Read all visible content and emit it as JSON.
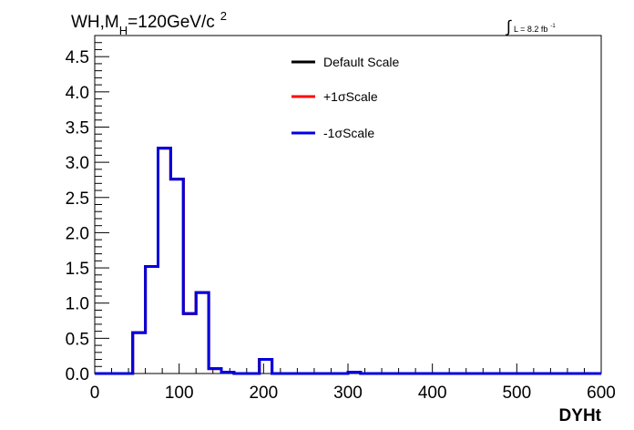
{
  "chart_data": {
    "type": "line",
    "title_parts": {
      "main": "WH,M",
      "sub": "H",
      "rest": "=120GeV/c",
      "sup": "2"
    },
    "lumi": {
      "integral": "∫",
      "text": "L = 8.2 fb",
      "sup": "-1"
    },
    "xlabel": "DYHt",
    "ylabel": "",
    "xlim": [
      0,
      600
    ],
    "ylim": [
      0,
      4.8
    ],
    "x_ticks": [
      "0",
      "100",
      "200",
      "300",
      "400",
      "500",
      "600"
    ],
    "y_ticks": [
      "0.0",
      "0.5",
      "1.0",
      "1.5",
      "2.0",
      "2.5",
      "3.0",
      "3.5",
      "4.0",
      "4.5"
    ],
    "grid": false,
    "legend_position": "top-center",
    "bin_edges": [
      0,
      15,
      30,
      45,
      60,
      75,
      90,
      105,
      120,
      135,
      150,
      165,
      180,
      195,
      210,
      225,
      240,
      255,
      270,
      285,
      300,
      315,
      330,
      345,
      360,
      375,
      390,
      405,
      420,
      435,
      450,
      465,
      480,
      495,
      510,
      525,
      540,
      555,
      570,
      585,
      600
    ],
    "series": [
      {
        "name": "Default Scale",
        "color": "#000000",
        "values": [
          0,
          0,
          0,
          0.58,
          1.52,
          3.2,
          2.76,
          0.85,
          1.15,
          0.07,
          0.02,
          0,
          0,
          0.2,
          0,
          0,
          0,
          0,
          0,
          0,
          0.02,
          0,
          0,
          0,
          0,
          0,
          0,
          0,
          0,
          0,
          0,
          0,
          0,
          0,
          0,
          0,
          0,
          0,
          0,
          0
        ]
      },
      {
        "name": "+1σScale",
        "color": "#ff0000",
        "values": [
          0,
          0,
          0,
          0.58,
          1.52,
          3.2,
          2.76,
          0.85,
          1.15,
          0.07,
          0.02,
          0,
          0,
          0.2,
          0,
          0,
          0,
          0,
          0,
          0,
          0.02,
          0,
          0,
          0,
          0,
          0,
          0,
          0,
          0,
          0,
          0,
          0,
          0,
          0,
          0,
          0,
          0,
          0,
          0,
          0
        ]
      },
      {
        "name": "-1σScale",
        "color": "#0000dd",
        "values": [
          0,
          0,
          0,
          0.58,
          1.52,
          3.2,
          2.76,
          0.85,
          1.15,
          0.07,
          0.02,
          0,
          0,
          0.2,
          0,
          0,
          0,
          0,
          0,
          0,
          0.02,
          0,
          0,
          0,
          0,
          0,
          0,
          0,
          0,
          0,
          0,
          0,
          0,
          0,
          0,
          0,
          0,
          0,
          0,
          0
        ]
      }
    ]
  }
}
